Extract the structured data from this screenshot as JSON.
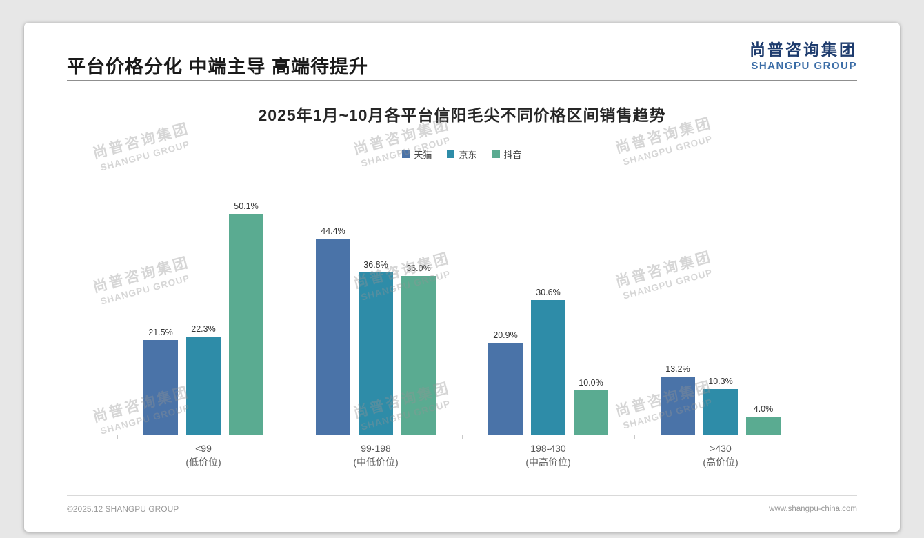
{
  "slide": {
    "title": "平台价格分化 中端主导 高端待提升",
    "logo": {
      "cn": "尚普咨询集团",
      "en": "SHANGPU GROUP"
    },
    "watermark": {
      "cn": "尚普咨询集团",
      "en": "SHANGPU GROUP"
    },
    "footer": {
      "left": "©2025.12 SHANGPU GROUP",
      "right": "www.shangpu-china.com"
    }
  },
  "chart_data": {
    "type": "bar",
    "title": "2025年1月~10月各平台信阳毛尖不同价格区间销售趋势",
    "categories": [
      {
        "range": "<99",
        "tier": "(低价位)"
      },
      {
        "range": "99-198",
        "tier": "(中低价位)"
      },
      {
        "range": "198-430",
        "tier": "(中高价位)"
      },
      {
        "range": ">430",
        "tier": "(高价位)"
      }
    ],
    "series": [
      {
        "name": "天猫",
        "color": "#4a73a8",
        "values": [
          21.5,
          44.4,
          20.9,
          13.2
        ]
      },
      {
        "name": "京东",
        "color": "#2e8ca8",
        "values": [
          22.3,
          36.8,
          30.6,
          10.3
        ]
      },
      {
        "name": "抖音",
        "color": "#5aab91",
        "values": [
          50.1,
          36.0,
          10.0,
          4.0
        ]
      }
    ],
    "value_suffix": "%",
    "ylim": [
      0,
      54
    ],
    "xlabel": "",
    "ylabel": "",
    "grid": false,
    "legend_position": "top"
  }
}
